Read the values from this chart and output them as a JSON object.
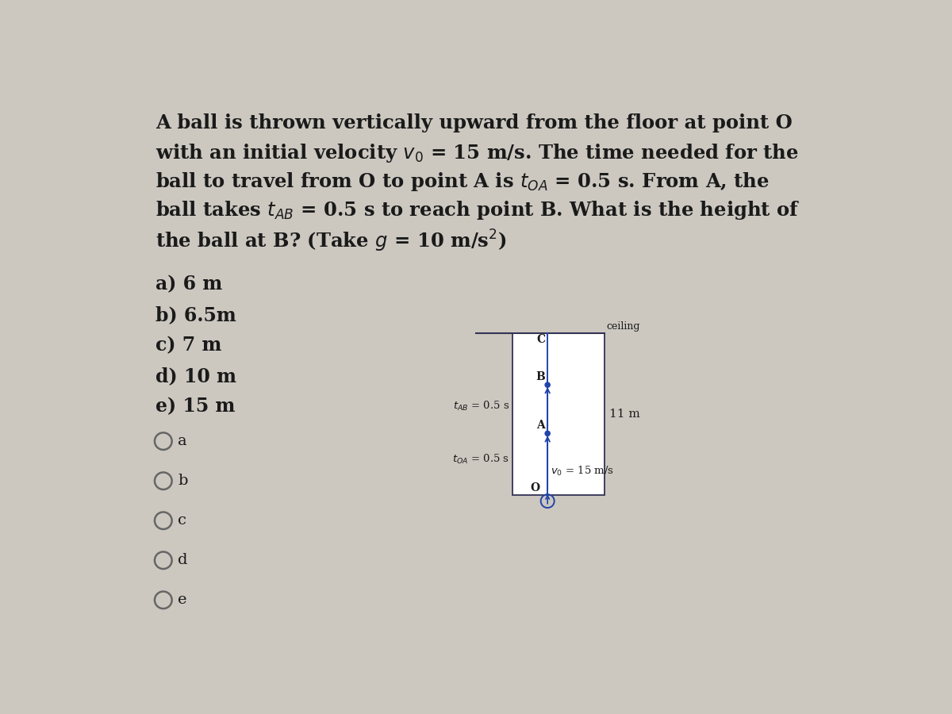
{
  "bg_color": "#ccc8c0",
  "text_color": "#1a1a1a",
  "diagram_color": "#2244aa",
  "choices": [
    "a) 6 m",
    "b) 6.5m",
    "c) 7 m",
    "d) 10 m",
    "e) 15 m"
  ],
  "radio_labels": [
    "a",
    "b",
    "c",
    "d",
    "e"
  ],
  "title_lines": [
    "A ball is thrown vertically upward from the floor at point O",
    "with an initial velocity v₀ = 15 m/s. The time needed for the",
    "ball to travel from O to point A is tₒₐ = 0.5 s. From A, the",
    "ball takes tₐᴮ = 0.5 s to reach point B. What is the height of",
    "the ball at B? (Take g = 10 m/s²)"
  ]
}
